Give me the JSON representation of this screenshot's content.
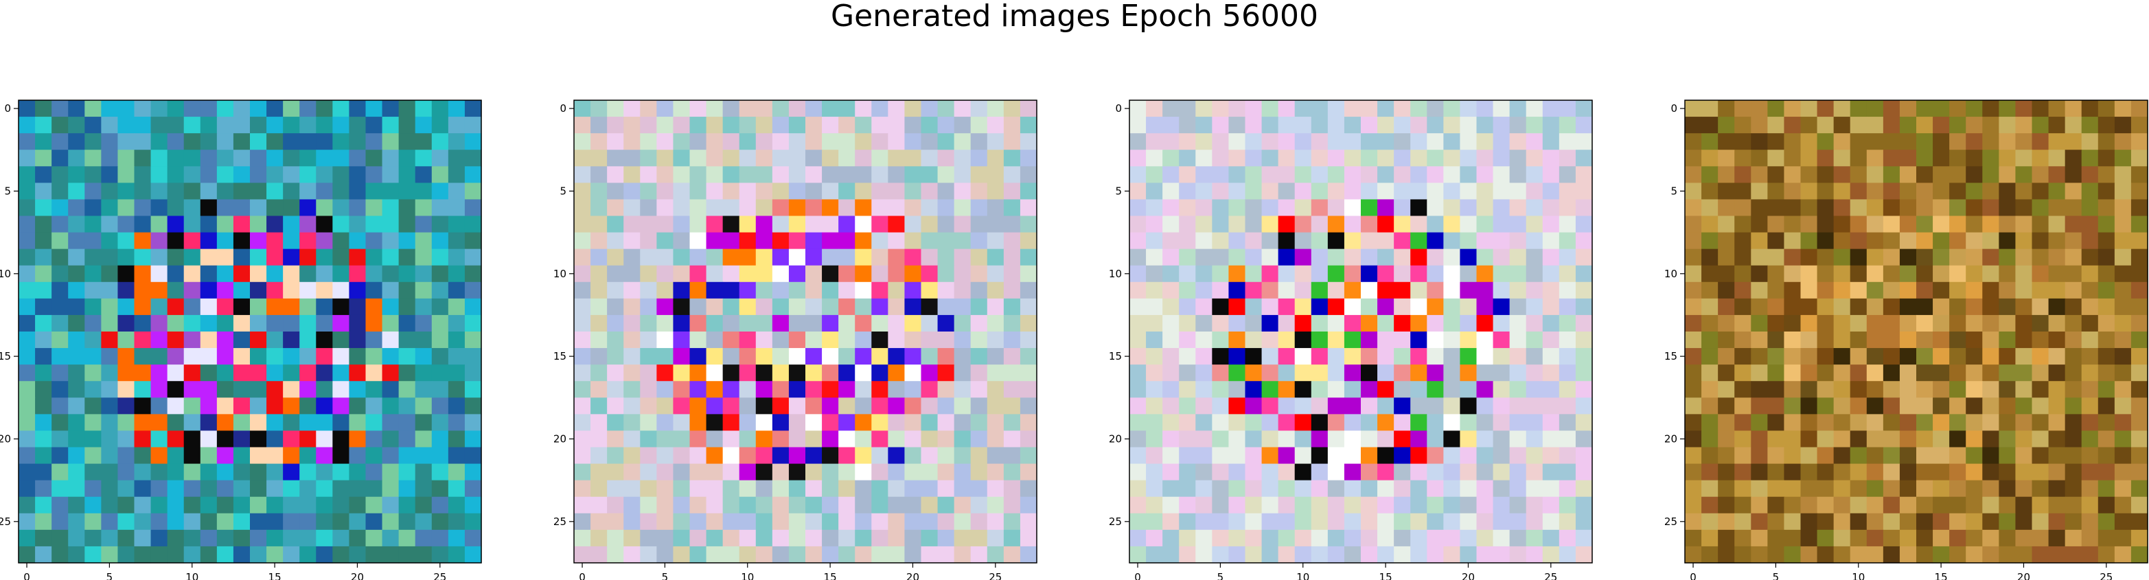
{
  "title": "Generated images Epoch 56000",
  "chart_data": {
    "type": "heatmap",
    "title": "Generated images Epoch 56000",
    "n_images": 4,
    "grid_size": [
      28,
      28
    ],
    "xlim": [
      -0.5,
      27.5
    ],
    "ylim": [
      27.5,
      -0.5
    ],
    "xticks": [
      0,
      5,
      10,
      15,
      20,
      25
    ],
    "yticks": [
      0,
      5,
      10,
      15,
      20,
      25
    ],
    "grid": false,
    "panels": [
      {
        "palette": [
          "#1b9e9e",
          "#2a8c8c",
          "#3aa6b8",
          "#18b6d8",
          "#2bd1d1",
          "#4b7fb6",
          "#1c5f9e",
          "#5fb0d0",
          "#7acc9e",
          "#2f7f6f"
        ],
        "center_palette": [
          "#f01010",
          "#ff6a00",
          "#ff2a6e",
          "#c020ff",
          "#1010d0",
          "#1f2a90",
          "#ffd7b0",
          "#9f4fd0",
          "#0a0a0a",
          "#e8e8ff"
        ]
      },
      {
        "palette": [
          "#c8d6e8",
          "#e0c0d8",
          "#9ed0c8",
          "#d8d0a8",
          "#b0c0e8",
          "#e8c8c0",
          "#7ec8c8",
          "#d0e8d0",
          "#f0d0f0",
          "#a8b8d0"
        ],
        "center_palette": [
          "#ff1010",
          "#ff7a00",
          "#ff3a90",
          "#c000e0",
          "#1010c0",
          "#ffe880",
          "#ffffff",
          "#101010",
          "#f08080",
          "#7f2fff"
        ]
      },
      {
        "palette": [
          "#c8d8f0",
          "#e8c8e0",
          "#b8e0c8",
          "#e0e0c0",
          "#c0c8f0",
          "#f0d0d0",
          "#a0c8d8",
          "#e8f0e8",
          "#f0c8f0",
          "#b0c0d0"
        ],
        "center_palette": [
          "#ff0000",
          "#ff8a10",
          "#ff40a0",
          "#b000d0",
          "#0000c0",
          "#ffe890",
          "#ffffff",
          "#0a0a0a",
          "#f09090",
          "#30c030"
        ]
      },
      {
        "palette": [
          "#b8863b",
          "#8c6a1e",
          "#c49a3c",
          "#a07828",
          "#6e4a12",
          "#d0a050",
          "#7f7f22",
          "#9a5a28",
          "#c8b060",
          "#5a3a10"
        ],
        "center_palette": [
          "#e0a040",
          "#b87830",
          "#9a6a20",
          "#f0c070",
          "#7a4a10",
          "#3a2a08",
          "#c8a050",
          "#8a8a30",
          "#d8b068",
          "#6a5018"
        ]
      }
    ]
  }
}
